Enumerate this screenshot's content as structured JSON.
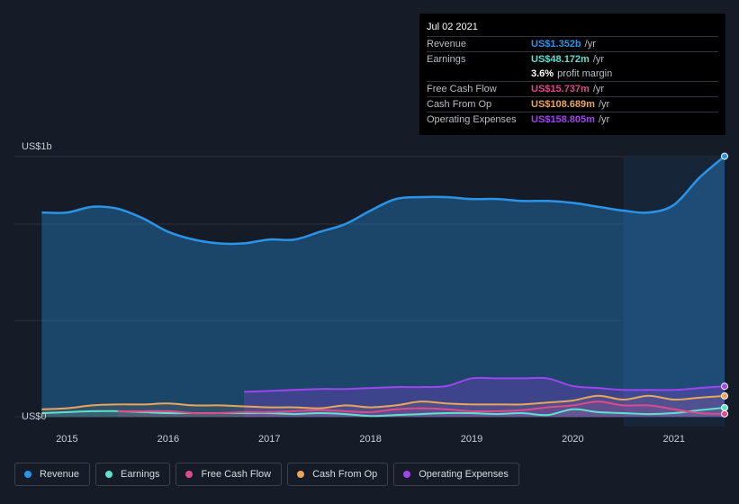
{
  "colors": {
    "revenue": "#2a94e8",
    "earnings": "#5ee0cc",
    "free_cash_flow": "#dc4b8c",
    "cash_from_op": "#e8a65c",
    "operating_expenses": "#9e45ef",
    "background": "#151b27",
    "highlight_band": "#172539"
  },
  "tooltip": {
    "date": "Jul 02 2021",
    "rows": [
      {
        "label": "Revenue",
        "value": "US$1.352b",
        "unit": "/yr"
      },
      {
        "label": "Earnings",
        "value": "US$48.172m",
        "unit": "/yr"
      },
      {
        "label": "",
        "value": "3.6%",
        "unit": "profit margin"
      },
      {
        "label": "Free Cash Flow",
        "value": "US$15.737m",
        "unit": "/yr"
      },
      {
        "label": "Cash From Op",
        "value": "US$108.689m",
        "unit": "/yr"
      },
      {
        "label": "Operating Expenses",
        "value": "US$158.805m",
        "unit": "/yr"
      }
    ]
  },
  "legend": [
    {
      "label": "Revenue"
    },
    {
      "label": "Earnings"
    },
    {
      "label": "Free Cash Flow"
    },
    {
      "label": "Cash From Op"
    },
    {
      "label": "Operating Expenses"
    }
  ],
  "chart_data": {
    "type": "area",
    "ylabel_top": "US$1b",
    "ylabel_bottom": "US$0",
    "ylim": [
      -0.05,
      1.35
    ],
    "xlim": [
      2014.48,
      2021.5
    ],
    "x_ticks": [
      "2015",
      "2016",
      "2017",
      "2018",
      "2019",
      "2020",
      "2021"
    ],
    "x_tick_values": [
      2015,
      2016,
      2017,
      2018,
      2019,
      2020,
      2021
    ],
    "highlight_from": 2020.5,
    "grid": true,
    "series": [
      {
        "name": "Revenue",
        "x": [
          2014.75,
          2015.0,
          2015.25,
          2015.5,
          2015.75,
          2016.0,
          2016.25,
          2016.5,
          2016.75,
          2017.0,
          2017.25,
          2017.5,
          2017.75,
          2018.0,
          2018.25,
          2018.5,
          2018.75,
          2019.0,
          2019.25,
          2019.5,
          2019.75,
          2020.0,
          2020.25,
          2020.5,
          2020.75,
          2021.0,
          2021.25,
          2021.5
        ],
        "values": [
          1.06,
          1.06,
          1.09,
          1.08,
          1.03,
          0.96,
          0.92,
          0.9,
          0.9,
          0.92,
          0.92,
          0.96,
          1.0,
          1.07,
          1.13,
          1.14,
          1.14,
          1.13,
          1.13,
          1.12,
          1.12,
          1.11,
          1.09,
          1.07,
          1.06,
          1.1,
          1.24,
          1.352
        ]
      },
      {
        "name": "Earnings",
        "x": [
          2014.75,
          2015.0,
          2015.25,
          2015.5,
          2015.75,
          2016.0,
          2016.25,
          2016.5,
          2016.75,
          2017.0,
          2017.25,
          2017.5,
          2017.75,
          2018.0,
          2018.25,
          2018.5,
          2018.75,
          2019.0,
          2019.25,
          2019.5,
          2019.75,
          2020.0,
          2020.25,
          2020.5,
          2020.75,
          2021.0,
          2021.25,
          2021.5
        ],
        "values": [
          0.02,
          0.025,
          0.03,
          0.03,
          0.025,
          0.02,
          0.02,
          0.02,
          0.02,
          0.02,
          0.015,
          0.02,
          0.015,
          0.005,
          0.01,
          0.015,
          0.02,
          0.02,
          0.015,
          0.02,
          0.01,
          0.04,
          0.025,
          0.02,
          0.015,
          0.02,
          0.035,
          0.048
        ]
      },
      {
        "name": "Free Cash Flow",
        "x": [
          2015.5,
          2015.75,
          2016.0,
          2016.25,
          2016.5,
          2016.75,
          2017.0,
          2017.25,
          2017.5,
          2017.75,
          2018.0,
          2018.25,
          2018.5,
          2018.75,
          2019.0,
          2019.25,
          2019.5,
          2019.75,
          2020.0,
          2020.25,
          2020.5,
          2020.75,
          2021.0,
          2021.25,
          2021.5
        ],
        "values": [
          0.03,
          0.03,
          0.03,
          0.02,
          0.02,
          0.025,
          0.025,
          0.03,
          0.035,
          0.03,
          0.025,
          0.04,
          0.045,
          0.04,
          0.03,
          0.03,
          0.035,
          0.05,
          0.06,
          0.08,
          0.06,
          0.06,
          0.04,
          0.02,
          0.016
        ]
      },
      {
        "name": "Cash From Op",
        "x": [
          2014.75,
          2015.0,
          2015.25,
          2015.5,
          2015.75,
          2016.0,
          2016.25,
          2016.5,
          2016.75,
          2017.0,
          2017.25,
          2017.5,
          2017.75,
          2018.0,
          2018.25,
          2018.5,
          2018.75,
          2019.0,
          2019.25,
          2019.5,
          2019.75,
          2020.0,
          2020.25,
          2020.5,
          2020.75,
          2021.0,
          2021.25,
          2021.5
        ],
        "values": [
          0.04,
          0.045,
          0.06,
          0.065,
          0.065,
          0.07,
          0.06,
          0.06,
          0.055,
          0.05,
          0.05,
          0.045,
          0.06,
          0.05,
          0.06,
          0.08,
          0.07,
          0.065,
          0.065,
          0.065,
          0.075,
          0.085,
          0.11,
          0.09,
          0.11,
          0.09,
          0.1,
          0.109
        ]
      },
      {
        "name": "Operating Expenses",
        "x": [
          2016.75,
          2017.0,
          2017.25,
          2017.5,
          2017.75,
          2018.0,
          2018.25,
          2018.5,
          2018.75,
          2019.0,
          2019.25,
          2019.5,
          2019.75,
          2020.0,
          2020.25,
          2020.5,
          2020.75,
          2021.0,
          2021.25,
          2021.5
        ],
        "values": [
          0.13,
          0.135,
          0.14,
          0.145,
          0.145,
          0.15,
          0.155,
          0.155,
          0.16,
          0.2,
          0.2,
          0.2,
          0.2,
          0.16,
          0.15,
          0.14,
          0.14,
          0.14,
          0.15,
          0.159
        ]
      }
    ]
  }
}
